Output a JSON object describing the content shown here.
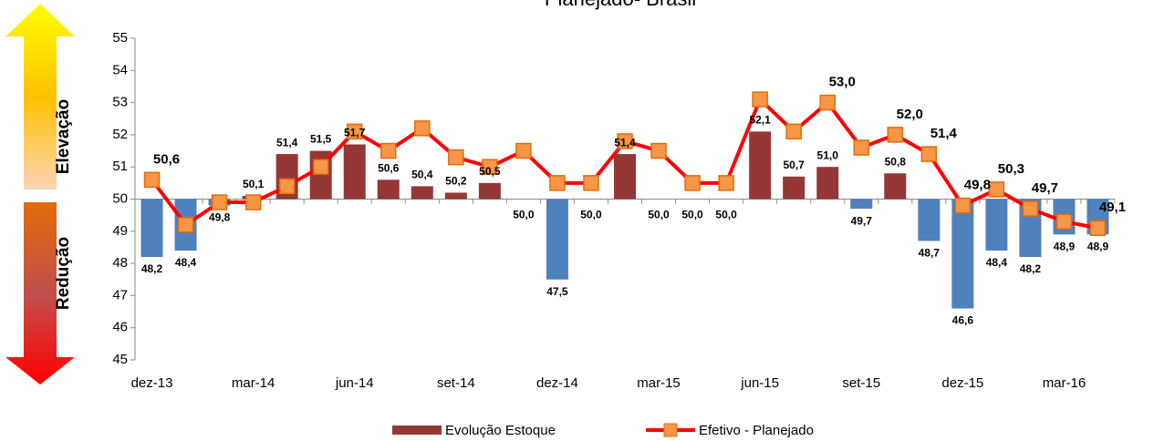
{
  "chart_data": {
    "type": "bar_line",
    "title": "Planejado- Brasil",
    "side_labels": [
      "Elevação",
      "Redução"
    ],
    "categories": [
      "dez-13",
      null,
      null,
      "mar-14",
      null,
      null,
      "jun-14",
      null,
      null,
      "set-14",
      null,
      null,
      "dez-14",
      null,
      null,
      "mar-15",
      null,
      null,
      "jun-15",
      null,
      null,
      "set-15",
      null,
      null,
      "dez-15",
      null,
      null,
      "mar-16",
      null
    ],
    "ylim": [
      45,
      55
    ],
    "yticks": [
      45,
      46,
      47,
      48,
      49,
      50,
      51,
      52,
      53,
      54,
      55
    ],
    "baseline": 50,
    "series": [
      {
        "name": "Evolução Estoque",
        "kind": "bar",
        "color": "#953735",
        "negative_color": "#4f81bd",
        "values": [
          48.2,
          48.4,
          49.8,
          50.1,
          51.4,
          51.5,
          51.7,
          50.6,
          50.4,
          50.2,
          50.5,
          50.0,
          47.5,
          50.0,
          51.4,
          50.0,
          50.0,
          50.0,
          52.1,
          50.7,
          51.0,
          49.7,
          50.8,
          48.7,
          46.6,
          48.4,
          48.2,
          48.9,
          48.9
        ],
        "value_labels": [
          "48,2",
          "48,4",
          "49,8",
          "50,1",
          "51,4",
          "51,5",
          "51,7",
          "50,6",
          "50,4",
          "50,2",
          "50,5",
          "50,0",
          "47,5",
          "50,0",
          "51,4",
          "50,0",
          "50,0",
          "50,0",
          "52,1",
          "50,7",
          "51,0",
          "49,7",
          "50,8",
          "48,7",
          "46,6",
          "48,4",
          "48,2",
          "48,9",
          "48,9"
        ]
      },
      {
        "name": "Efetivo - Planejado",
        "kind": "line",
        "color": "#ff0000",
        "marker_color": "#f79646",
        "values": [
          50.6,
          49.2,
          49.9,
          49.9,
          50.4,
          51.0,
          52.1,
          51.5,
          52.2,
          51.3,
          51.0,
          51.5,
          50.5,
          50.5,
          51.8,
          51.5,
          50.5,
          50.5,
          53.1,
          52.1,
          53.0,
          51.6,
          52.0,
          51.4,
          49.8,
          50.3,
          49.7,
          49.3,
          49.1
        ],
        "value_labels": [
          "50,6",
          null,
          null,
          null,
          null,
          null,
          null,
          null,
          null,
          null,
          null,
          null,
          null,
          null,
          null,
          null,
          null,
          null,
          null,
          null,
          "53,0",
          null,
          "52,0",
          "51,4",
          "49,8",
          "50,3",
          "49,7",
          null,
          "49,1"
        ]
      }
    ]
  }
}
